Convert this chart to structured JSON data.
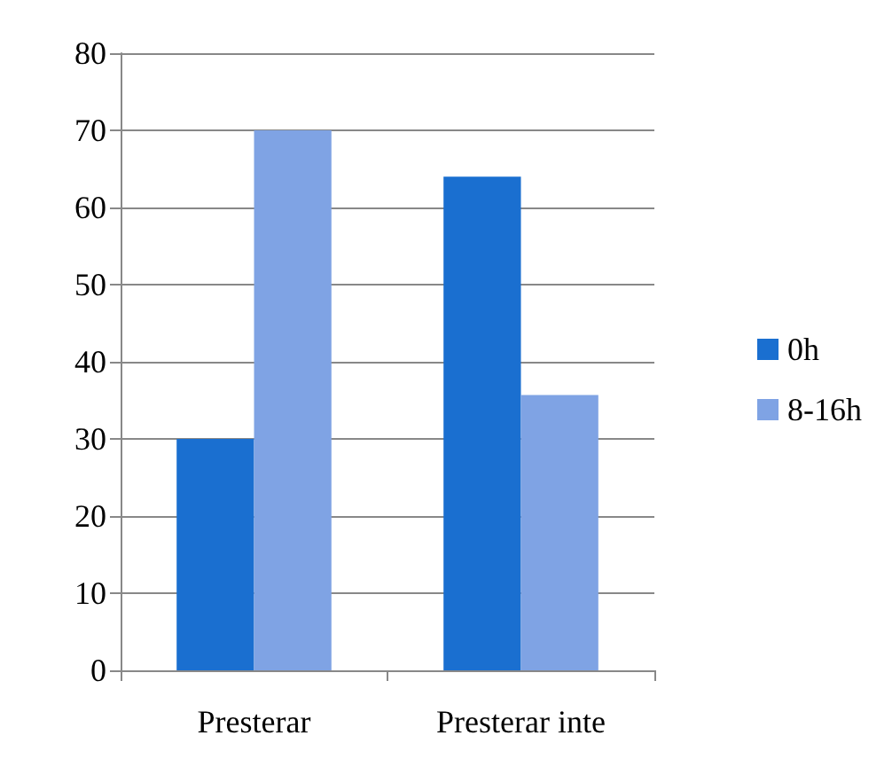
{
  "chart_data": {
    "type": "bar",
    "categories": [
      "Presterar",
      "Presterar inte"
    ],
    "series": [
      {
        "name": "0h",
        "color": "#1a6fd0",
        "values": [
          30,
          64
        ]
      },
      {
        "name": "8-16h",
        "color": "#7fa3e4",
        "values": [
          70,
          35.7
        ]
      }
    ],
    "ylim": [
      0,
      80
    ],
    "yticks": [
      0,
      10,
      20,
      30,
      40,
      50,
      60,
      70,
      80
    ],
    "grid": "y",
    "legend": "right"
  }
}
